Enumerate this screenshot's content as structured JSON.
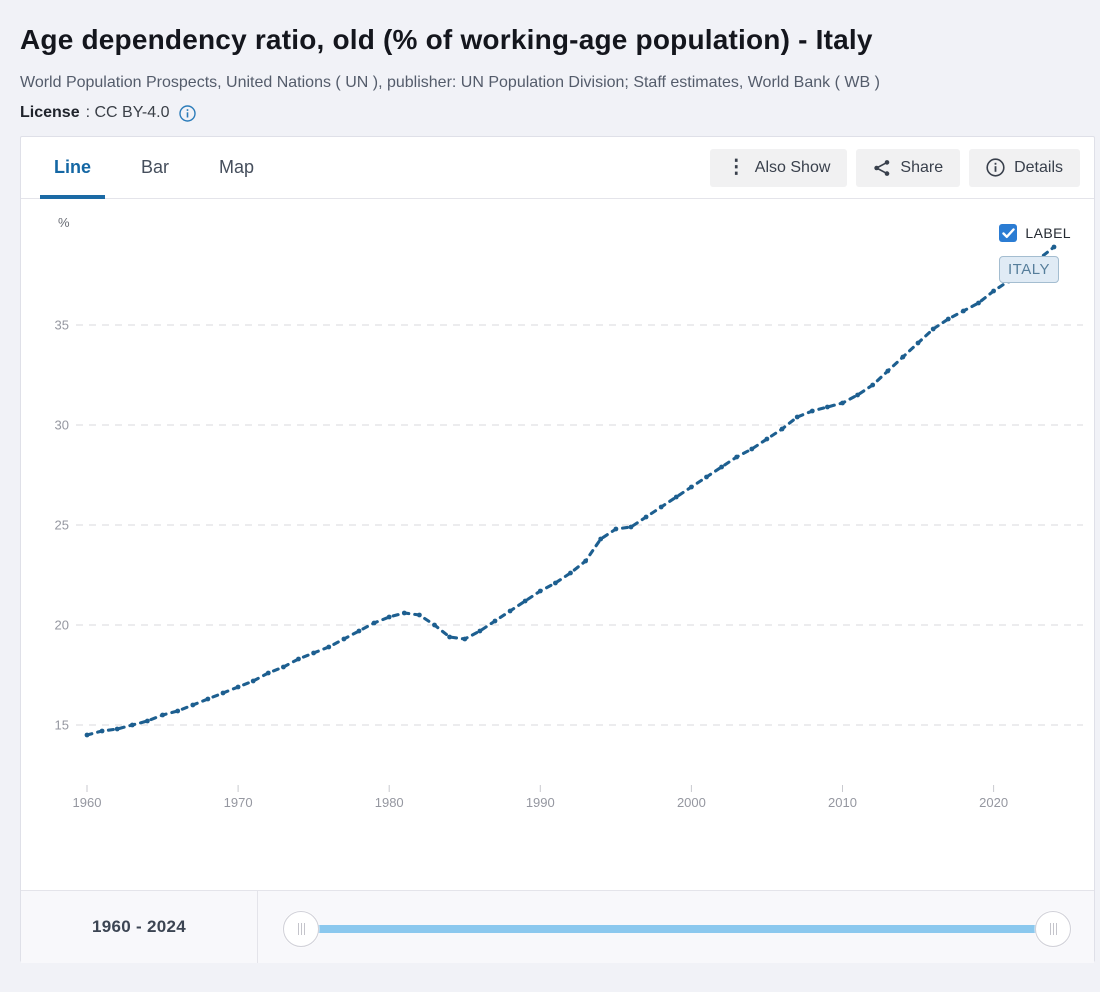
{
  "page": {
    "title": "Age dependency ratio, old (% of working-age population) - Italy",
    "source": "World Population Prospects, United Nations ( UN ), publisher: UN Population Division; Staff estimates, World Bank ( WB )",
    "license_label": "License",
    "license_value": ": CC BY-4.0"
  },
  "tabs": [
    {
      "label": "Line",
      "active": true
    },
    {
      "label": "Bar",
      "active": false
    },
    {
      "label": "Map",
      "active": false
    }
  ],
  "toolbar": {
    "also_show": "Also Show",
    "share": "Share",
    "details": "Details"
  },
  "legend": {
    "label": "LABEL",
    "checked": true,
    "series_tag": "ITALY"
  },
  "footer": {
    "range": "1960 - 2024"
  },
  "colors": {
    "line": "#1d5f90",
    "accent_blue": "#1467a4",
    "checkbox_blue": "#2b7cd3",
    "slider_track": "#8bc8ee",
    "tag_bg": "#e0ebf5",
    "tag_border": "#a4bdd0"
  },
  "chart_data": {
    "type": "line",
    "title": "Age dependency ratio, old (% of working-age population) - Italy",
    "ylabel": "%",
    "xlabel": "",
    "x_start": 1960,
    "x_end": 2024,
    "x_step": 1,
    "xticks": [
      1960,
      1970,
      1980,
      1990,
      2000,
      2010,
      2020
    ],
    "yticks": [
      15,
      20,
      25,
      30,
      35
    ],
    "ylim": [
      12.7,
      41
    ],
    "xlim": [
      1959.3,
      2026
    ],
    "grid": true,
    "line_style": "dotted-dashed",
    "legend_position": "top-right",
    "series": [
      {
        "name": "Italy",
        "values": [
          14.5,
          14.7,
          14.8,
          15.0,
          15.2,
          15.5,
          15.7,
          16.0,
          16.3,
          16.6,
          16.9,
          17.2,
          17.6,
          17.9,
          18.3,
          18.6,
          18.9,
          19.3,
          19.7,
          20.1,
          20.4,
          20.6,
          20.5,
          20.0,
          19.4,
          19.3,
          19.7,
          20.2,
          20.7,
          21.2,
          21.7,
          22.1,
          22.6,
          23.2,
          24.3,
          24.8,
          24.9,
          25.4,
          25.9,
          26.4,
          26.9,
          27.4,
          27.9,
          28.4,
          28.8,
          29.3,
          29.8,
          30.4,
          30.7,
          30.9,
          31.1,
          31.5,
          32.0,
          32.7,
          33.4,
          34.1,
          34.8,
          35.3,
          35.7,
          36.1,
          36.7,
          37.2,
          37.7,
          38.3,
          38.9
        ]
      }
    ]
  }
}
